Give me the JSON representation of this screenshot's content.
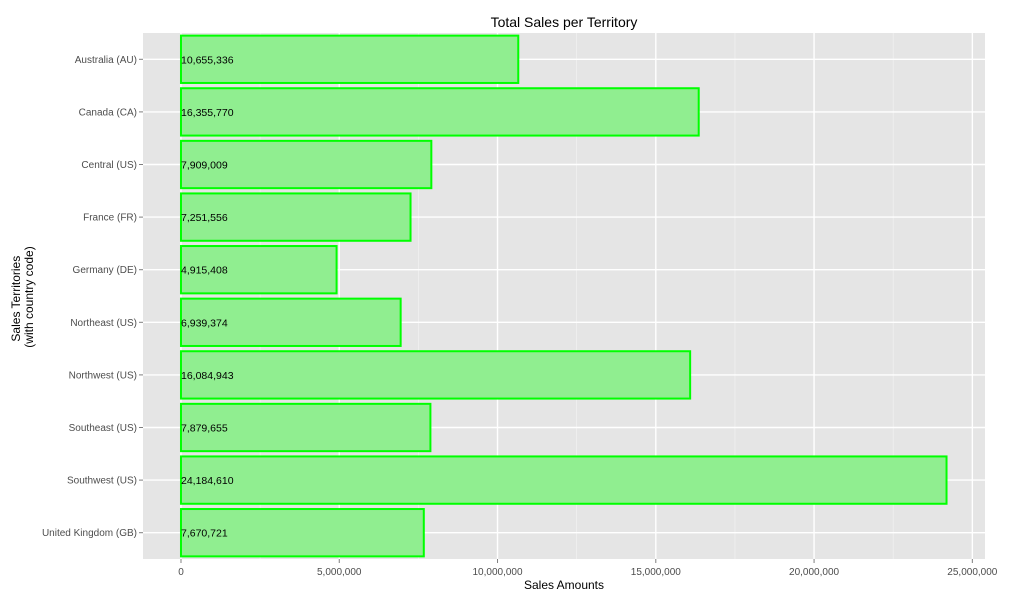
{
  "chart_data": {
    "type": "bar",
    "orientation": "horizontal",
    "title": "Total Sales per Territory",
    "xlabel": "Sales Amounts",
    "ylabel_lines": [
      "Sales Territories",
      "(with country code)"
    ],
    "categories": [
      "Australia (AU)",
      "Canada (CA)",
      "Central (US)",
      "France (FR)",
      "Germany (DE)",
      "Northeast (US)",
      "Northwest (US)",
      "Southeast (US)",
      "Southwest (US)",
      "United Kingdom (GB)"
    ],
    "values": [
      10655336,
      16355770,
      7909009,
      7251556,
      4915408,
      6939374,
      16084943,
      7879655,
      24184610,
      7670721
    ],
    "data_labels": [
      "10,655,336",
      "16,355,770",
      "7,909,009",
      "7,251,556",
      "4,915,408",
      "6,939,374",
      "16,084,943",
      "7,879,655",
      "24,184,610",
      "7,670,721"
    ],
    "x_ticks": [
      0,
      5000000,
      10000000,
      15000000,
      20000000,
      25000000
    ],
    "x_tick_labels": [
      "0",
      "5,000,000",
      "10,000,000",
      "15,000,000",
      "20,000,000",
      "25,000,000"
    ],
    "xlim": [
      -1200000,
      25400000
    ],
    "grid": true,
    "colors": {
      "panel_background": "#e5e5e5",
      "grid_major": "#ffffff",
      "grid_minor": "#f2f2f2",
      "bar_fill": "#90ee90",
      "bar_outline": "#00ff00",
      "tick_text": "#4d4d4d"
    }
  }
}
